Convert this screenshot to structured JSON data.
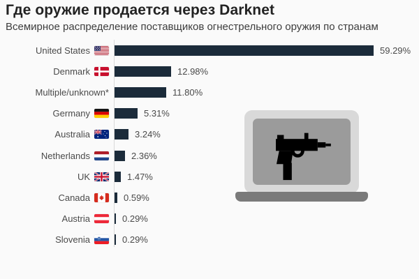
{
  "header": {
    "title": "Где оружие продается через Darknet",
    "subtitle": "Всемирное распределение поставщиков огнестрельного оружия по странам"
  },
  "chart_data": {
    "type": "bar",
    "orientation": "horizontal",
    "title": "Где оружие продается через Darknet",
    "subtitle": "Всемирное распределение поставщиков огнестрельного оружия по странам",
    "categories": [
      "United States",
      "Denmark",
      "Multiple/unknown*",
      "Germany",
      "Australia",
      "Netherlands",
      "UK",
      "Canada",
      "Austria",
      "Slovenia"
    ],
    "values": [
      59.29,
      12.98,
      11.8,
      5.31,
      3.24,
      2.36,
      1.47,
      0.59,
      0.29,
      0.29
    ],
    "value_labels": [
      "59.29%",
      "12.98%",
      "11.80%",
      "5.31%",
      "3.24%",
      "2.36%",
      "1.47%",
      "0.59%",
      "0.29%",
      "0.29%"
    ],
    "flag_icons": [
      "us-flag",
      "denmark-flag",
      "",
      "germany-flag",
      "australia-flag",
      "netherlands-flag",
      "uk-flag",
      "canada-flag",
      "austria-flag",
      "slovenia-flag"
    ],
    "xlim": [
      0,
      60
    ],
    "grid": false,
    "legend": "none",
    "bar_color": "#1b2b3a",
    "label_color": "#4a4a4a",
    "axis_line_color": "#d9d9d9"
  },
  "illustration": {
    "name": "laptop-with-uzi",
    "gun_icon": "uzi-submachine-gun-icon",
    "colors": {
      "body": "#d9d9d9",
      "screen": "#9b9b9b",
      "base": "#7a7a7a",
      "gun": "#000000"
    }
  },
  "background_color": "#fafafa"
}
